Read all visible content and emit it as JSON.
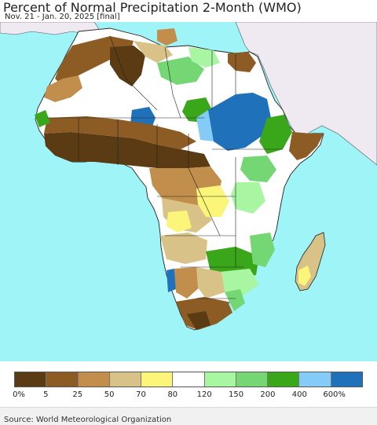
{
  "title": "Percent of Normal Precipitation 2-Month (WMO)",
  "subtitle": "Nov. 21 - Jan. 20, 2025 [final]",
  "source": "Source: World Meteorological Organization",
  "legend": {
    "colors": [
      "#5a3b13",
      "#8c5c24",
      "#c28e4c",
      "#d9c288",
      "#fbf57a",
      "#ffffff",
      "#a8f5a2",
      "#74d774",
      "#3aa61a",
      "#84cbf8",
      "#1f72b9"
    ],
    "labels": [
      "0%",
      "5",
      "25",
      "50",
      "70",
      "80",
      "120",
      "150",
      "200",
      "400",
      "600%"
    ]
  },
  "colors": {
    "ocean": "#9ff4f7",
    "middle_east": "#efe9f2",
    "border": "#222222"
  }
}
